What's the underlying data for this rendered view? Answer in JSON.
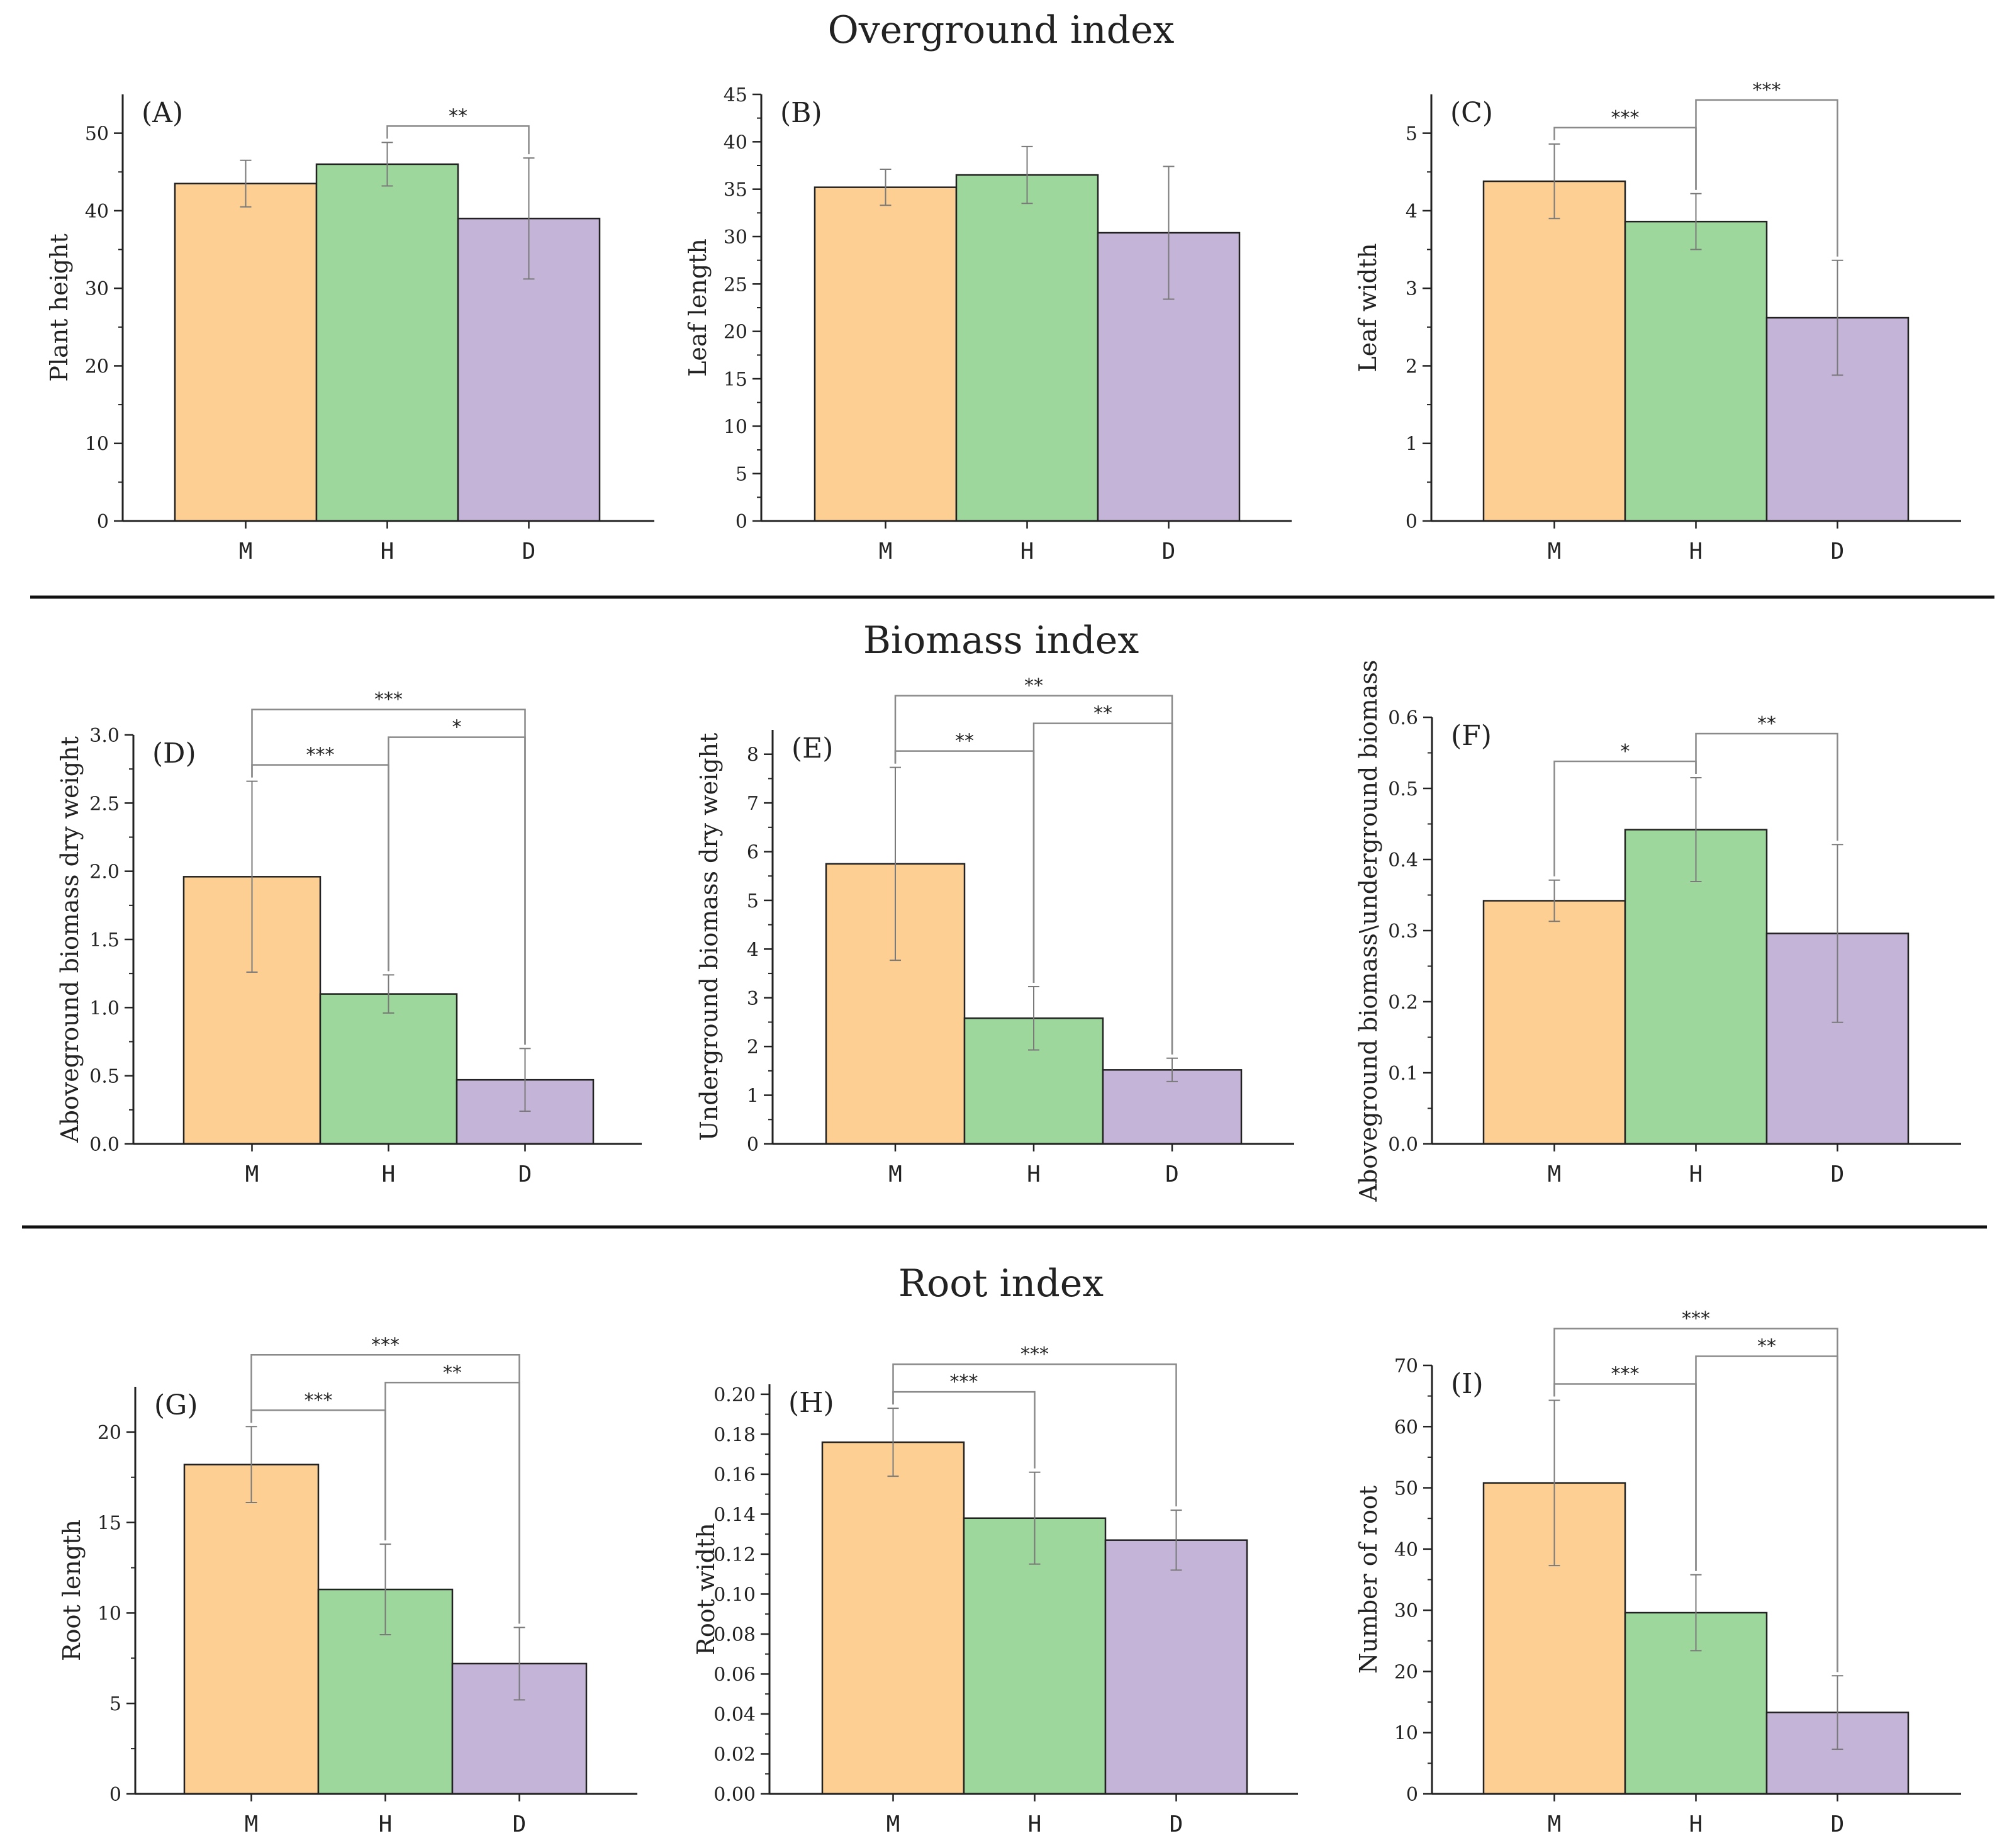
{
  "section_titles": [
    "Overground index",
    "Biomass index",
    "Root index"
  ],
  "colors": {
    "M": "#FDCF92",
    "H": "#9DD79B",
    "D": "#C4B4D8",
    "axis": "#222222",
    "bracket": "#8a8a8a",
    "divider": "#111111"
  },
  "chart_data": [
    {
      "panel": "(A)",
      "type": "bar",
      "categories": [
        "M",
        "H",
        "D"
      ],
      "values": [
        43.5,
        46.0,
        39.0
      ],
      "errors": [
        3.0,
        2.8,
        7.8
      ],
      "ylabel": "Plant height",
      "ylim": [
        0,
        55
      ],
      "yticks": [
        0,
        10,
        20,
        30,
        40,
        50
      ],
      "sig": [
        {
          "from": 1,
          "to": 2,
          "label": "**"
        }
      ]
    },
    {
      "panel": "(B)",
      "type": "bar",
      "categories": [
        "M",
        "H",
        "D"
      ],
      "values": [
        35.2,
        36.5,
        30.4
      ],
      "errors": [
        1.9,
        3.0,
        7.0
      ],
      "ylabel": "Leaf length",
      "ylim": [
        0,
        45
      ],
      "yticks": [
        0,
        5,
        10,
        15,
        20,
        25,
        30,
        35,
        40,
        45
      ],
      "sig": []
    },
    {
      "panel": "(C)",
      "type": "bar",
      "categories": [
        "M",
        "H",
        "D"
      ],
      "values": [
        4.38,
        3.86,
        2.62
      ],
      "errors": [
        0.48,
        0.36,
        0.74
      ],
      "ylabel": "Leaf width",
      "ylim": [
        0,
        5.5
      ],
      "yticks": [
        0,
        1,
        2,
        3,
        4,
        5
      ],
      "sig": [
        {
          "from": 0,
          "to": 1,
          "label": "***"
        },
        {
          "from": 1,
          "to": 2,
          "label": "***"
        }
      ]
    },
    {
      "panel": "(D)",
      "type": "bar",
      "categories": [
        "M",
        "H",
        "D"
      ],
      "values": [
        1.96,
        1.1,
        0.47
      ],
      "errors": [
        0.7,
        0.14,
        0.23
      ],
      "ylabel": "Aboveground biomass dry weight",
      "ylim": [
        0,
        3.0
      ],
      "yticks": [
        0.0,
        0.5,
        1.0,
        1.5,
        2.0,
        2.5,
        3.0
      ],
      "tickDecimals": 1,
      "sig": [
        {
          "from": 0,
          "to": 2,
          "label": "***"
        },
        {
          "from": 0,
          "to": 1,
          "label": "***"
        },
        {
          "from": 1,
          "to": 2,
          "label": "*"
        }
      ]
    },
    {
      "panel": "(E)",
      "type": "bar",
      "categories": [
        "M",
        "H",
        "D"
      ],
      "values": [
        5.75,
        2.58,
        1.52
      ],
      "errors": [
        1.98,
        0.65,
        0.24
      ],
      "ylabel": "Underground biomass dry weight",
      "ylim": [
        0,
        8.5
      ],
      "yticks": [
        0,
        1,
        2,
        3,
        4,
        5,
        6,
        7,
        8
      ],
      "sig": [
        {
          "from": 0,
          "to": 2,
          "label": "**"
        },
        {
          "from": 0,
          "to": 1,
          "label": "**"
        },
        {
          "from": 1,
          "to": 2,
          "label": "**"
        }
      ]
    },
    {
      "panel": "(F)",
      "type": "bar",
      "categories": [
        "M",
        "H",
        "D"
      ],
      "values": [
        0.342,
        0.442,
        0.296
      ],
      "errors": [
        0.029,
        0.073,
        0.125
      ],
      "ylabel": "Aboveground biomass\\underground biomass",
      "ylim": [
        0,
        0.6
      ],
      "yticks": [
        0.0,
        0.1,
        0.2,
        0.3,
        0.4,
        0.5,
        0.6
      ],
      "tickDecimals": 1,
      "sig": [
        {
          "from": 0,
          "to": 1,
          "label": "*"
        },
        {
          "from": 1,
          "to": 2,
          "label": "**"
        }
      ]
    },
    {
      "panel": "(G)",
      "type": "bar",
      "categories": [
        "M",
        "H",
        "D"
      ],
      "values": [
        18.2,
        11.3,
        7.2
      ],
      "errors": [
        2.1,
        2.5,
        2.0
      ],
      "ylabel": "Root length",
      "ylim": [
        0,
        22.5
      ],
      "yticks": [
        0,
        5,
        10,
        15,
        20
      ],
      "sig": [
        {
          "from": 0,
          "to": 2,
          "label": "***"
        },
        {
          "from": 0,
          "to": 1,
          "label": "***"
        },
        {
          "from": 1,
          "to": 2,
          "label": "**"
        }
      ]
    },
    {
      "panel": "(H)",
      "type": "bar",
      "categories": [
        "M",
        "H",
        "D"
      ],
      "values": [
        0.176,
        0.138,
        0.127
      ],
      "errors": [
        0.017,
        0.023,
        0.015
      ],
      "ylabel": "Root width",
      "ylim": [
        0,
        0.205
      ],
      "yticks": [
        0.0,
        0.02,
        0.04,
        0.06,
        0.08,
        0.1,
        0.12,
        0.14,
        0.16,
        0.18,
        0.2
      ],
      "tickDecimals": 2,
      "sig": [
        {
          "from": 0,
          "to": 2,
          "label": "***"
        },
        {
          "from": 0,
          "to": 1,
          "label": "***"
        }
      ]
    },
    {
      "panel": "(I)",
      "type": "bar",
      "categories": [
        "M",
        "H",
        "D"
      ],
      "values": [
        50.8,
        29.6,
        13.3
      ],
      "errors": [
        13.5,
        6.2,
        6.0
      ],
      "ylabel": "Number of root",
      "ylim": [
        0,
        70
      ],
      "yticks": [
        0,
        10,
        20,
        30,
        40,
        50,
        60,
        70
      ],
      "sig": [
        {
          "from": 0,
          "to": 2,
          "label": "***"
        },
        {
          "from": 0,
          "to": 1,
          "label": "***"
        },
        {
          "from": 1,
          "to": 2,
          "label": "**"
        }
      ]
    }
  ]
}
